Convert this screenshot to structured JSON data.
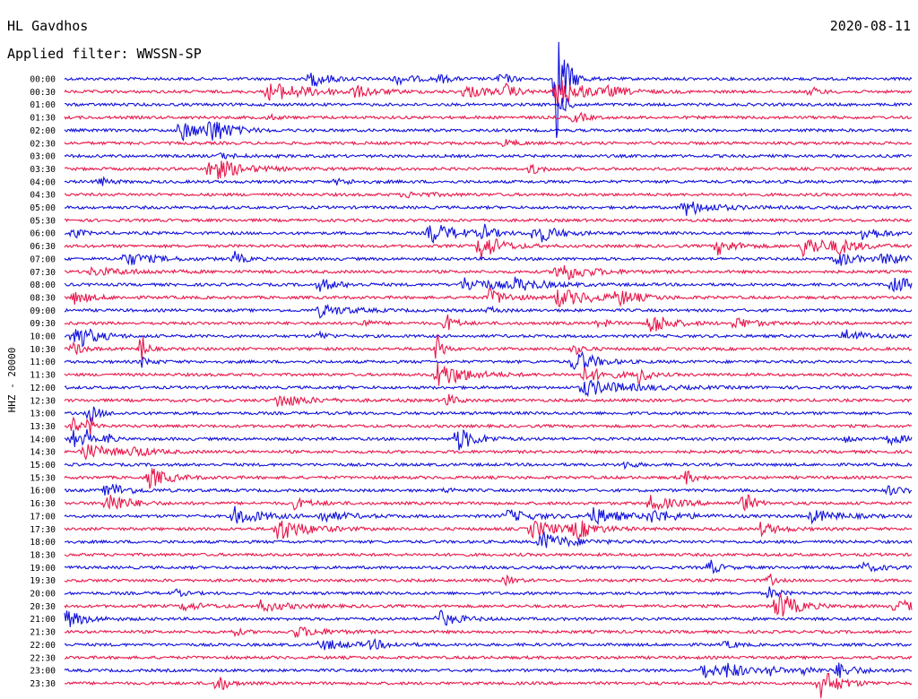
{
  "header": {
    "station": "HL Gavdhos",
    "date": "2020-08-11",
    "filter": "Applied filter: WWSSN-SP"
  },
  "side_label": "HHZ - 20000",
  "colors": {
    "trace_a": "#1010dc",
    "trace_b": "#e8164a",
    "text": "#000000"
  },
  "chart_data": {
    "type": "line",
    "kind": "helicorder",
    "y_tick_labels": [
      "00:00",
      "00:30",
      "01:00",
      "01:30",
      "02:00",
      "02:30",
      "03:00",
      "03:30",
      "04:00",
      "04:30",
      "05:00",
      "05:30",
      "06:00",
      "06:30",
      "07:00",
      "07:30",
      "08:00",
      "08:30",
      "09:00",
      "09:30",
      "10:00",
      "10:30",
      "11:00",
      "11:30",
      "12:00",
      "12:30",
      "13:00",
      "13:30",
      "14:00",
      "14:30",
      "15:00",
      "15:30",
      "16:00",
      "16:30",
      "17:00",
      "17:30",
      "18:00",
      "18:30",
      "19:00",
      "19:30",
      "20:00",
      "20:30",
      "21:00",
      "21:30",
      "22:00",
      "22:30",
      "23:00",
      "23:30"
    ],
    "trace_colors": [
      "#1010dc",
      "#e8164a"
    ],
    "row_minutes": 30,
    "events": [
      {
        "row": 0,
        "at": 0.29,
        "amp": 9,
        "dur": 0.02
      },
      {
        "row": 0,
        "at": 0.39,
        "amp": 6,
        "dur": 0.02
      },
      {
        "row": 0,
        "at": 0.442,
        "amp": 5,
        "dur": 0.01
      },
      {
        "row": 0,
        "at": 0.514,
        "amp": 8,
        "dur": 0.01
      },
      {
        "row": 0,
        "at": 0.58,
        "amp": 70,
        "dur": 0.01
      },
      {
        "row": 1,
        "at": 0.24,
        "amp": 10,
        "dur": 0.05
      },
      {
        "row": 1,
        "at": 0.34,
        "amp": 6,
        "dur": 0.02
      },
      {
        "row": 1,
        "at": 0.47,
        "amp": 7,
        "dur": 0.03
      },
      {
        "row": 1,
        "at": 0.52,
        "amp": 8,
        "dur": 0.01
      },
      {
        "row": 1,
        "at": 0.58,
        "amp": 16,
        "dur": 0.03
      },
      {
        "row": 1,
        "at": 0.64,
        "amp": 4,
        "dur": 0.02
      },
      {
        "row": 1,
        "at": 0.88,
        "amp": 5,
        "dur": 0.01
      },
      {
        "row": 2,
        "at": 0.585,
        "amp": 10,
        "dur": 0.01
      },
      {
        "row": 3,
        "at": 0.24,
        "amp": 3,
        "dur": 0.01
      },
      {
        "row": 3,
        "at": 0.6,
        "amp": 9,
        "dur": 0.01
      },
      {
        "row": 4,
        "at": 0.135,
        "amp": 13,
        "dur": 0.02
      },
      {
        "row": 4,
        "at": 0.17,
        "amp": 16,
        "dur": 0.02
      },
      {
        "row": 5,
        "at": 0.52,
        "amp": 5,
        "dur": 0.01
      },
      {
        "row": 6,
        "at": 0.18,
        "amp": 3,
        "dur": 0.02
      },
      {
        "row": 7,
        "at": 0.17,
        "amp": 15,
        "dur": 0.03
      },
      {
        "row": 7,
        "at": 0.55,
        "amp": 7,
        "dur": 0.01
      },
      {
        "row": 8,
        "at": 0.04,
        "amp": 6,
        "dur": 0.01
      },
      {
        "row": 8,
        "at": 0.32,
        "amp": 3,
        "dur": 0.02
      },
      {
        "row": 9,
        "at": 0.4,
        "amp": 3,
        "dur": 0.03
      },
      {
        "row": 10,
        "at": 0.73,
        "amp": 9,
        "dur": 0.03
      },
      {
        "row": 12,
        "at": 0.01,
        "amp": 6,
        "dur": 0.01
      },
      {
        "row": 12,
        "at": 0.43,
        "amp": 12,
        "dur": 0.03
      },
      {
        "row": 12,
        "at": 0.495,
        "amp": 8,
        "dur": 0.01
      },
      {
        "row": 12,
        "at": 0.555,
        "amp": 13,
        "dur": 0.02
      },
      {
        "row": 12,
        "at": 0.94,
        "amp": 9,
        "dur": 0.02
      },
      {
        "row": 13,
        "at": 0.49,
        "amp": 17,
        "dur": 0.02
      },
      {
        "row": 13,
        "at": 0.77,
        "amp": 9,
        "dur": 0.02
      },
      {
        "row": 13,
        "at": 0.87,
        "amp": 12,
        "dur": 0.03
      },
      {
        "row": 13,
        "at": 0.91,
        "amp": 7,
        "dur": 0.02
      },
      {
        "row": 14,
        "at": 0.07,
        "amp": 8,
        "dur": 0.03
      },
      {
        "row": 14,
        "at": 0.2,
        "amp": 8,
        "dur": 0.01
      },
      {
        "row": 14,
        "at": 0.91,
        "amp": 9,
        "dur": 0.02
      },
      {
        "row": 14,
        "at": 0.965,
        "amp": 8,
        "dur": 0.02
      },
      {
        "row": 15,
        "at": 0.03,
        "amp": 4,
        "dur": 0.05
      },
      {
        "row": 15,
        "at": 0.58,
        "amp": 12,
        "dur": 0.03
      },
      {
        "row": 16,
        "at": 0.3,
        "amp": 7,
        "dur": 0.02
      },
      {
        "row": 16,
        "at": 0.47,
        "amp": 8,
        "dur": 0.04
      },
      {
        "row": 16,
        "at": 0.53,
        "amp": 6,
        "dur": 0.03
      },
      {
        "row": 16,
        "at": 0.975,
        "amp": 12,
        "dur": 0.02
      },
      {
        "row": 17,
        "at": 0.01,
        "amp": 7,
        "dur": 0.02
      },
      {
        "row": 17,
        "at": 0.5,
        "amp": 10,
        "dur": 0.02
      },
      {
        "row": 17,
        "at": 0.58,
        "amp": 10,
        "dur": 0.04
      },
      {
        "row": 17,
        "at": 0.65,
        "amp": 9,
        "dur": 0.02
      },
      {
        "row": 18,
        "at": 0.3,
        "amp": 7,
        "dur": 0.03
      },
      {
        "row": 18,
        "at": 0.5,
        "amp": 4,
        "dur": 0.01
      },
      {
        "row": 19,
        "at": 0.35,
        "amp": 5,
        "dur": 0.01
      },
      {
        "row": 19,
        "at": 0.45,
        "amp": 11,
        "dur": 0.01
      },
      {
        "row": 19,
        "at": 0.63,
        "amp": 6,
        "dur": 0.01
      },
      {
        "row": 19,
        "at": 0.69,
        "amp": 14,
        "dur": 0.02
      },
      {
        "row": 19,
        "at": 0.79,
        "amp": 7,
        "dur": 0.02
      },
      {
        "row": 20,
        "at": 0.01,
        "amp": 18,
        "dur": 0.02
      },
      {
        "row": 20,
        "at": 0.3,
        "amp": 5,
        "dur": 0.01
      },
      {
        "row": 20,
        "at": 0.92,
        "amp": 8,
        "dur": 0.02
      },
      {
        "row": 21,
        "at": 0.01,
        "amp": 8,
        "dur": 0.01
      },
      {
        "row": 21,
        "at": 0.09,
        "amp": 25,
        "dur": 0.005
      },
      {
        "row": 21,
        "at": 0.44,
        "amp": 25,
        "dur": 0.005
      },
      {
        "row": 21,
        "at": 0.6,
        "amp": 7,
        "dur": 0.01
      },
      {
        "row": 22,
        "at": 0.09,
        "amp": 6,
        "dur": 0.01
      },
      {
        "row": 22,
        "at": 0.6,
        "amp": 16,
        "dur": 0.02
      },
      {
        "row": 23,
        "at": 0.44,
        "amp": 15,
        "dur": 0.03
      },
      {
        "row": 23,
        "at": 0.61,
        "amp": 8,
        "dur": 0.03
      },
      {
        "row": 23,
        "at": 0.68,
        "amp": 20,
        "dur": 0.005
      },
      {
        "row": 24,
        "at": 0.61,
        "amp": 9,
        "dur": 0.05
      },
      {
        "row": 25,
        "at": 0.25,
        "amp": 8,
        "dur": 0.03
      },
      {
        "row": 25,
        "at": 0.45,
        "amp": 8,
        "dur": 0.01
      },
      {
        "row": 26,
        "at": 0.03,
        "amp": 10,
        "dur": 0.01
      },
      {
        "row": 27,
        "at": 0.01,
        "amp": 16,
        "dur": 0.005
      },
      {
        "row": 27,
        "at": 0.03,
        "amp": 12,
        "dur": 0.005
      },
      {
        "row": 28,
        "at": 0.01,
        "amp": 12,
        "dur": 0.005
      },
      {
        "row": 28,
        "at": 0.025,
        "amp": 12,
        "dur": 0.005
      },
      {
        "row": 28,
        "at": 0.05,
        "amp": 10,
        "dur": 0.005
      },
      {
        "row": 28,
        "at": 0.46,
        "amp": 16,
        "dur": 0.02
      },
      {
        "row": 28,
        "at": 0.92,
        "amp": 5,
        "dur": 0.01
      },
      {
        "row": 28,
        "at": 0.97,
        "amp": 6,
        "dur": 0.02
      },
      {
        "row": 29,
        "at": 0.02,
        "amp": 10,
        "dur": 0.03
      },
      {
        "row": 29,
        "at": 0.08,
        "amp": 5,
        "dur": 0.02
      },
      {
        "row": 30,
        "at": 0.66,
        "amp": 5,
        "dur": 0.01
      },
      {
        "row": 31,
        "at": 0.1,
        "amp": 12,
        "dur": 0.02
      },
      {
        "row": 31,
        "at": 0.73,
        "amp": 10,
        "dur": 0.01
      },
      {
        "row": 32,
        "at": 0.05,
        "amp": 10,
        "dur": 0.02
      },
      {
        "row": 32,
        "at": 0.45,
        "amp": 3,
        "dur": 0.01
      },
      {
        "row": 32,
        "at": 0.97,
        "amp": 5,
        "dur": 0.02
      },
      {
        "row": 33,
        "at": 0.05,
        "amp": 14,
        "dur": 0.02
      },
      {
        "row": 33,
        "at": 0.27,
        "amp": 6,
        "dur": 0.02
      },
      {
        "row": 33,
        "at": 0.69,
        "amp": 8,
        "dur": 0.03
      },
      {
        "row": 33,
        "at": 0.8,
        "amp": 14,
        "dur": 0.01
      },
      {
        "row": 34,
        "at": 0.2,
        "amp": 10,
        "dur": 0.03
      },
      {
        "row": 34,
        "at": 0.3,
        "amp": 6,
        "dur": 0.03
      },
      {
        "row": 34,
        "at": 0.52,
        "amp": 7,
        "dur": 0.03
      },
      {
        "row": 34,
        "at": 0.62,
        "amp": 10,
        "dur": 0.03
      },
      {
        "row": 34,
        "at": 0.69,
        "amp": 7,
        "dur": 0.03
      },
      {
        "row": 34,
        "at": 0.88,
        "amp": 7,
        "dur": 0.03
      },
      {
        "row": 35,
        "at": 0.25,
        "amp": 14,
        "dur": 0.03
      },
      {
        "row": 35,
        "at": 0.55,
        "amp": 10,
        "dur": 0.03
      },
      {
        "row": 35,
        "at": 0.6,
        "amp": 12,
        "dur": 0.02
      },
      {
        "row": 35,
        "at": 0.82,
        "amp": 7,
        "dur": 0.02
      },
      {
        "row": 36,
        "at": 0.56,
        "amp": 11,
        "dur": 0.03
      },
      {
        "row": 38,
        "at": 0.76,
        "amp": 10,
        "dur": 0.01
      },
      {
        "row": 38,
        "at": 0.94,
        "amp": 5,
        "dur": 0.02
      },
      {
        "row": 39,
        "at": 0.52,
        "amp": 5,
        "dur": 0.01
      },
      {
        "row": 39,
        "at": 0.83,
        "amp": 10,
        "dur": 0.005
      },
      {
        "row": 40,
        "at": 0.13,
        "amp": 4,
        "dur": 0.01
      },
      {
        "row": 40,
        "at": 0.83,
        "amp": 8,
        "dur": 0.01
      },
      {
        "row": 41,
        "at": 0.14,
        "amp": 5,
        "dur": 0.02
      },
      {
        "row": 41,
        "at": 0.23,
        "amp": 6,
        "dur": 0.03
      },
      {
        "row": 41,
        "at": 0.84,
        "amp": 18,
        "dur": 0.02
      },
      {
        "row": 41,
        "at": 0.98,
        "amp": 8,
        "dur": 0.02
      },
      {
        "row": 42,
        "at": 0.0,
        "amp": 11,
        "dur": 0.02
      },
      {
        "row": 42,
        "at": 0.44,
        "amp": 10,
        "dur": 0.02
      },
      {
        "row": 43,
        "at": 0.2,
        "amp": 4,
        "dur": 0.01
      },
      {
        "row": 43,
        "at": 0.27,
        "amp": 6,
        "dur": 0.03
      },
      {
        "row": 44,
        "at": 0.3,
        "amp": 6,
        "dur": 0.03
      },
      {
        "row": 44,
        "at": 0.36,
        "amp": 5,
        "dur": 0.02
      },
      {
        "row": 44,
        "at": 0.78,
        "amp": 5,
        "dur": 0.01
      },
      {
        "row": 46,
        "at": 0.75,
        "amp": 10,
        "dur": 0.02
      },
      {
        "row": 46,
        "at": 0.78,
        "amp": 8,
        "dur": 0.02
      },
      {
        "row": 46,
        "at": 0.83,
        "amp": 7,
        "dur": 0.01
      },
      {
        "row": 46,
        "at": 0.87,
        "amp": 8,
        "dur": 0.01
      },
      {
        "row": 46,
        "at": 0.91,
        "amp": 9,
        "dur": 0.02
      },
      {
        "row": 47,
        "at": 0.18,
        "amp": 12,
        "dur": 0.01
      },
      {
        "row": 47,
        "at": 0.89,
        "amp": 18,
        "dur": 0.02
      }
    ]
  }
}
